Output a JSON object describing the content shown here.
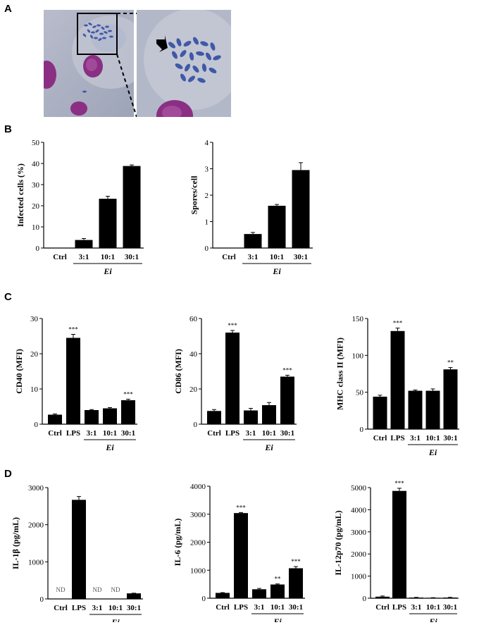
{
  "panels": {
    "A": "A",
    "B": "B",
    "C": "C",
    "D": "D"
  },
  "colors": {
    "bar": "#000000",
    "micro_background": "#a8adbf",
    "spore": "#3f58a8",
    "cell_nucleus": "#8a2f84"
  },
  "icons": [
    "arrow-pointer-icon",
    "zoom-box",
    "dashed-zoom-line"
  ],
  "chart_data": [
    {
      "id": "B1",
      "type": "bar",
      "panel": "B",
      "ylabel": "Infected cells (%)",
      "ylim": [
        0,
        50
      ],
      "yticks": [
        0,
        10,
        20,
        30,
        40,
        50
      ],
      "categories": [
        "Ctrl",
        "3:1",
        "10:1",
        "30:1"
      ],
      "values": [
        0,
        3.8,
        23.3,
        38.8
      ],
      "errors": [
        0,
        0.7,
        1.2,
        0.5
      ],
      "sig": [
        "",
        "",
        "",
        ""
      ],
      "nd": [
        false,
        false,
        false,
        false
      ],
      "group_label": "Ei",
      "group_start": 1
    },
    {
      "id": "B2",
      "type": "bar",
      "panel": "B",
      "ylabel": "Spores/cell",
      "ylim": [
        0,
        4
      ],
      "yticks": [
        0,
        1,
        2,
        3,
        4
      ],
      "categories": [
        "Ctrl",
        "3:1",
        "10:1",
        "30:1"
      ],
      "values": [
        0,
        0.53,
        1.6,
        2.95
      ],
      "errors": [
        0,
        0.06,
        0.05,
        0.28
      ],
      "sig": [
        "",
        "",
        "",
        ""
      ],
      "nd": [
        false,
        false,
        false,
        false
      ],
      "group_label": "Ei",
      "group_start": 1
    },
    {
      "id": "C1",
      "type": "bar",
      "panel": "C",
      "ylabel": "CD40 (MFI)",
      "ylim": [
        0,
        30
      ],
      "yticks": [
        0,
        10,
        20,
        30
      ],
      "categories": [
        "Ctrl",
        "LPS",
        "3:1",
        "10:1",
        "30:1"
      ],
      "values": [
        2.7,
        24.5,
        4.0,
        4.5,
        6.8
      ],
      "errors": [
        0.2,
        1.0,
        0.15,
        0.2,
        0.3
      ],
      "sig": [
        "",
        "***",
        "",
        "",
        "***"
      ],
      "nd": [
        false,
        false,
        false,
        false,
        false
      ],
      "group_label": "Ei",
      "group_start": 2
    },
    {
      "id": "C2",
      "type": "bar",
      "panel": "C",
      "ylabel": "CD86 (MFI)",
      "ylim": [
        0,
        60
      ],
      "yticks": [
        0,
        20,
        40,
        60
      ],
      "categories": [
        "Ctrl",
        "LPS",
        "3:1",
        "10:1",
        "30:1"
      ],
      "values": [
        7.5,
        52,
        7.8,
        10.8,
        27
      ],
      "errors": [
        0.8,
        1.2,
        1.2,
        1.5,
        0.8
      ],
      "sig": [
        "",
        "***",
        "",
        "",
        "***"
      ],
      "nd": [
        false,
        false,
        false,
        false,
        false
      ],
      "group_label": "Ei",
      "group_start": 2
    },
    {
      "id": "C3",
      "type": "bar",
      "panel": "C",
      "ylabel": "MHC class II (MFI)",
      "ylim": [
        0,
        150
      ],
      "yticks": [
        0,
        50,
        100,
        150
      ],
      "categories": [
        "Ctrl",
        "LPS",
        "3:1",
        "10:1",
        "30:1"
      ],
      "values": [
        44,
        133,
        52,
        52,
        81
      ],
      "errors": [
        2,
        4,
        1,
        2.5,
        2.5
      ],
      "sig": [
        "",
        "***",
        "",
        "",
        "**"
      ],
      "nd": [
        false,
        false,
        false,
        false,
        false
      ],
      "group_label": "Ei",
      "group_start": 2
    },
    {
      "id": "D1",
      "type": "bar",
      "panel": "D",
      "ylabel": "IL-1β (pg/mL)",
      "ylim": [
        0,
        3000
      ],
      "yticks": [
        0,
        1000,
        2000,
        3000
      ],
      "categories": [
        "Ctrl",
        "LPS",
        "3:1",
        "10:1",
        "30:1"
      ],
      "values": [
        0,
        2670,
        0,
        0,
        150
      ],
      "errors": [
        0,
        90,
        0,
        0,
        5
      ],
      "sig": [
        "",
        "",
        "",
        "",
        ""
      ],
      "nd": [
        true,
        false,
        true,
        true,
        false
      ],
      "nd_label": "ND",
      "group_label": "Ei",
      "group_start": 2
    },
    {
      "id": "D2",
      "type": "bar",
      "panel": "D",
      "ylabel": "IL-6 (pg/mL)",
      "ylim": [
        0,
        4000
      ],
      "yticks": [
        0,
        1000,
        2000,
        3000,
        4000
      ],
      "categories": [
        "Ctrl",
        "LPS",
        "3:1",
        "10:1",
        "30:1"
      ],
      "values": [
        190,
        3040,
        320,
        490,
        1070
      ],
      "errors": [
        10,
        20,
        30,
        20,
        60
      ],
      "sig": [
        "",
        "***",
        "",
        "**",
        "***"
      ],
      "nd": [
        false,
        false,
        false,
        false,
        false
      ],
      "group_label": "Ei",
      "group_start": 2
    },
    {
      "id": "D3",
      "type": "bar",
      "panel": "D",
      "ylabel": "IL-12p70 (pg/mL)",
      "ylim": [
        0,
        5000
      ],
      "yticks": [
        0,
        1000,
        2000,
        3000,
        4000,
        5000
      ],
      "categories": [
        "Ctrl",
        "LPS",
        "3:1",
        "10:1",
        "30:1"
      ],
      "values": [
        70,
        4850,
        30,
        20,
        30
      ],
      "errors": [
        30,
        120,
        10,
        5,
        10
      ],
      "sig": [
        "",
        "***",
        "",
        "",
        ""
      ],
      "nd": [
        false,
        false,
        false,
        false,
        false
      ],
      "group_label": "Ei",
      "group_start": 2
    }
  ]
}
